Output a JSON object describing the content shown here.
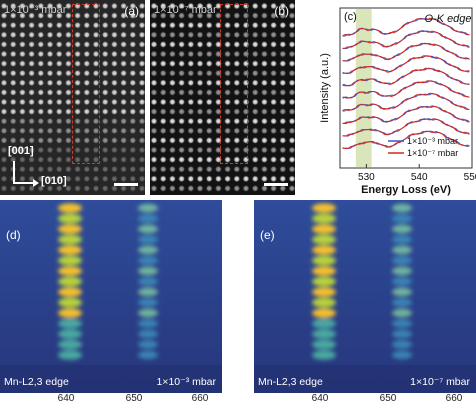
{
  "panel_a": {
    "letter": "(a)",
    "pressure": "1×10⁻³ mbar"
  },
  "panel_b": {
    "letter": "(b)",
    "pressure": "1×10⁻⁷ mbar"
  },
  "axes": {
    "vertical": "[001]",
    "horizontal": "[010]"
  },
  "panel_c": {
    "letter": "(c)",
    "edge_title": "O-K edge"
  },
  "panel_d": {
    "letter": "(d)",
    "edge_label": "Mn-L2,3 edge",
    "pressure": "1×10⁻³ mbar"
  },
  "panel_e": {
    "letter": "(e)",
    "edge_label": "Mn-L2,3 edge",
    "pressure": "1×10⁻⁷ mbar"
  },
  "eels_ticks": [
    "640",
    "650",
    "660"
  ],
  "chart_data": {
    "type": "line",
    "title": "O-K edge",
    "xlabel": "Energy Loss (eV)",
    "ylabel": "Intensity (a.u.)",
    "xlim": [
      525,
      550
    ],
    "xticks": [
      "530",
      "540",
      "550"
    ],
    "highlight_band": [
      528,
      531
    ],
    "legend_position": "bottom-right",
    "series": [
      {
        "name": "1×10⁻³ mbar",
        "color": "#3a56c8"
      },
      {
        "name": "1×10⁻⁷ mbar",
        "color": "#d2281e"
      }
    ],
    "num_spectra": 10
  }
}
